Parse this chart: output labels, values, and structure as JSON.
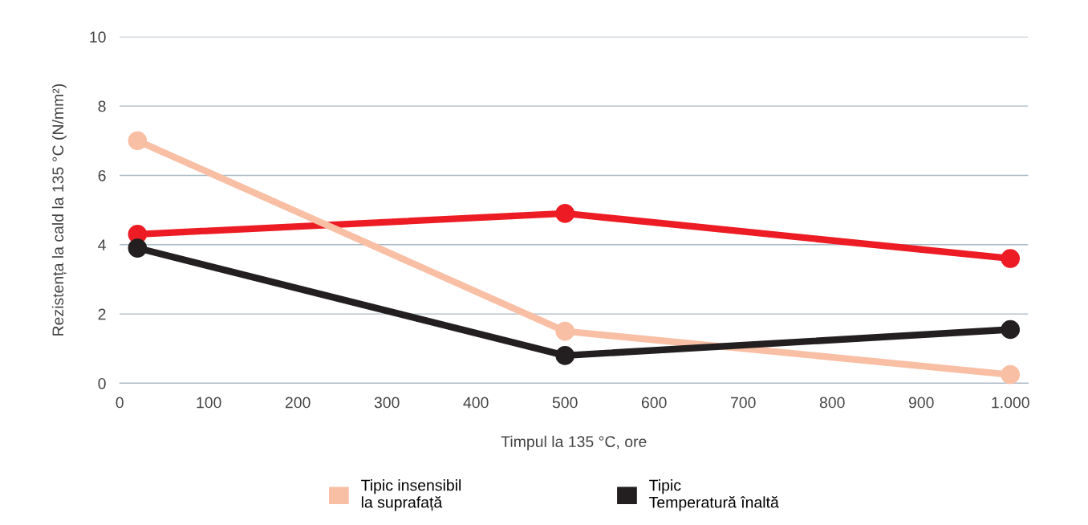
{
  "chart_data": {
    "type": "line",
    "xlabel": "Timpul la 135 °C, ore",
    "ylabel": "Rezistența la cald la 135 °C (N/mm²)",
    "x": [
      20,
      500,
      1000
    ],
    "series": [
      {
        "color": "#ed1c24",
        "values": [
          4.3,
          4.9,
          3.6
        ]
      },
      {
        "name": "Tipic insensibil\nla suprafață",
        "color": "#f8bfa5",
        "values": [
          7.0,
          1.5,
          0.25
        ]
      },
      {
        "name": "Tipic\nTemperatură înaltă",
        "color": "#231f20",
        "values": [
          3.9,
          0.8,
          1.55
        ]
      }
    ],
    "xlim": [
      0,
      1020
    ],
    "xticks": [
      0,
      100,
      200,
      300,
      400,
      500,
      600,
      700,
      800,
      900,
      {
        "value": 1000,
        "label": "1.000"
      }
    ],
    "ylim": [
      0,
      10
    ],
    "yticks": [
      0,
      2,
      4,
      6,
      8,
      10
    ],
    "grid": "y",
    "legend": "bottom",
    "marker": "circle",
    "line_style": "solid"
  }
}
